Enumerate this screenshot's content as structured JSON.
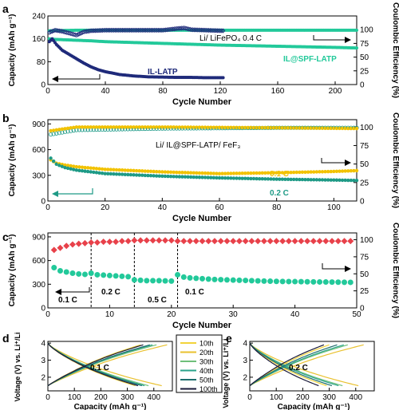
{
  "colors": {
    "navy": "#1f2a7a",
    "teal": "#22c99a",
    "yellow": "#f2c200",
    "tealDark": "#1e9a86",
    "red": "#e8414a"
  },
  "panels": {
    "a": {
      "letter": "a",
      "ylabel": "Capacity (mAh g⁻¹)",
      "y2label": "Coulombic Efficiency (%)",
      "xlabel": "Cycle Number",
      "xticks": [
        "0",
        "40",
        "80",
        "120",
        "160",
        "200"
      ],
      "yticks": [
        "0",
        "80",
        "160",
        "240"
      ],
      "y2ticks": [
        "0",
        "25",
        "50",
        "75",
        "100"
      ],
      "annotation": "Li/ LiFePO₄  0.4 C",
      "label_il": "IL-LATP",
      "label_spf": "IL@SPF-LATP"
    },
    "b": {
      "letter": "b",
      "ylabel": "Capacity (mAh g⁻¹)",
      "y2label": "Coulombic Efficiency (%)",
      "xlabel": "Cycle Number",
      "xticks": [
        "0",
        "20",
        "40",
        "60",
        "80",
        "100"
      ],
      "yticks": [
        "0",
        "300",
        "600",
        "900"
      ],
      "y2ticks": [
        "0",
        "25",
        "50",
        "75",
        "100"
      ],
      "annotation": "Li/ IL@SPF-LATP/ FeF₃",
      "rate1": "0.1 C",
      "rate2": "0.2 C"
    },
    "c": {
      "letter": "c",
      "ylabel": "Capacity (mAh g⁻¹)",
      "y2label": "Coulombic Efficiency (%)",
      "xlabel": "Cycle Number",
      "xticks": [
        "0",
        "10",
        "20",
        "30",
        "40",
        "50"
      ],
      "yticks": [
        "0",
        "300",
        "600",
        "900"
      ],
      "y2ticks": [
        "0",
        "25",
        "50",
        "75",
        "100"
      ],
      "rates": [
        "0.1 C",
        "0.2 C",
        "0.5 C",
        "0.1 C"
      ]
    },
    "d": {
      "letter": "d",
      "ylabel": "Voltage (V) vs. Li⁺/Li",
      "xlabel": "Capacity (mAh g⁻¹)",
      "xticks": [
        "0",
        "100",
        "200",
        "300",
        "400"
      ],
      "yticks": [
        "2",
        "3",
        "4"
      ],
      "rate": "0.1 C"
    },
    "e": {
      "letter": "e",
      "ylabel": "Voltage (V) vs. Li⁺/Li",
      "xlabel": "Capacity (mAh g⁻¹)",
      "xticks": [
        "0",
        "100",
        "200",
        "300",
        "400"
      ],
      "yticks": [
        "2",
        "3",
        "4"
      ],
      "rate": "0.2 C"
    },
    "legend": [
      "10th",
      "20th",
      "30th",
      "40th",
      "50th",
      "100th"
    ]
  },
  "chart_data": [
    {
      "type": "scatter",
      "panel": "a",
      "xlim": [
        0,
        215
      ],
      "ylim": [
        0,
        240
      ],
      "y2lim": [
        0,
        125
      ],
      "series": [
        {
          "name": "IL-LATP",
          "axis": "left",
          "x": [
            1,
            3,
            6,
            10,
            15,
            20,
            25,
            30,
            35,
            40,
            50,
            60,
            70,
            80,
            90,
            100,
            110,
            122
          ],
          "y": [
            150,
            160,
            140,
            120,
            105,
            90,
            75,
            62,
            52,
            45,
            35,
            30,
            27,
            26,
            25,
            25,
            24,
            24
          ]
        },
        {
          "name": "IL@SPF-LATP",
          "axis": "left",
          "x": [
            1,
            5,
            10,
            20,
            30,
            40,
            60,
            80,
            100,
            120,
            140,
            160,
            180,
            200,
            215
          ],
          "y": [
            160,
            158,
            157,
            155,
            153,
            150,
            147,
            144,
            141,
            138,
            136,
            134,
            132,
            130,
            128
          ]
        },
        {
          "name": "IL-LATP CE",
          "axis": "right",
          "x": [
            1,
            5,
            10,
            20,
            25,
            30,
            40,
            60,
            80,
            90,
            95,
            100,
            110,
            122
          ],
          "y": [
            95,
            99,
            97,
            90,
            96,
            98,
            99,
            99,
            99,
            102,
            103,
            100,
            99,
            98
          ]
        },
        {
          "name": "IL@SPF-LATP CE",
          "axis": "right",
          "x": [
            1,
            20,
            50,
            100,
            150,
            200,
            215
          ],
          "y": [
            98,
            99,
            99,
            99,
            99,
            99,
            99
          ]
        }
      ]
    },
    {
      "type": "scatter",
      "panel": "b",
      "xlim": [
        0,
        108
      ],
      "ylim": [
        0,
        950
      ],
      "y2lim": [
        0,
        110
      ],
      "series": [
        {
          "name": "0.1 C",
          "axis": "left",
          "x": [
            1,
            3,
            6,
            10,
            20,
            40,
            60,
            80,
            100,
            108
          ],
          "y": [
            480,
            440,
            420,
            400,
            370,
            340,
            320,
            330,
            345,
            355
          ]
        },
        {
          "name": "0.2 C",
          "axis": "left",
          "x": [
            1,
            3,
            6,
            10,
            20,
            40,
            60,
            80,
            100,
            108
          ],
          "y": [
            500,
            430,
            390,
            360,
            320,
            290,
            270,
            255,
            245,
            240
          ]
        },
        {
          "name": "0.1 C CE",
          "axis": "right",
          "x": [
            1,
            10,
            40,
            80,
            108
          ],
          "y": [
            95,
            100,
            100,
            99,
            98
          ]
        },
        {
          "name": "0.2 C CE",
          "axis": "right",
          "x": [
            1,
            10,
            40,
            80,
            108
          ],
          "y": [
            90,
            96,
            98,
            99,
            99
          ]
        }
      ]
    },
    {
      "type": "scatter",
      "panel": "c",
      "xlim": [
        0,
        50
      ],
      "ylim": [
        0,
        950
      ],
      "y2lim": [
        0,
        110
      ],
      "series": [
        {
          "name": "Capacity",
          "axis": "left",
          "x": [
            1,
            2,
            3,
            4,
            5,
            6,
            7,
            8,
            9,
            10,
            11,
            12,
            13,
            14,
            15,
            16,
            17,
            18,
            19,
            20,
            21,
            22,
            23,
            24,
            25,
            26,
            27,
            28,
            29,
            30,
            31,
            32,
            33,
            34,
            35,
            36,
            37,
            38,
            39,
            40,
            41,
            42,
            43,
            44,
            45,
            46,
            47,
            48,
            49
          ],
          "y": [
            510,
            470,
            455,
            440,
            430,
            425,
            440,
            420,
            415,
            410,
            405,
            400,
            395,
            355,
            350,
            345,
            345,
            345,
            342,
            340,
            420,
            390,
            380,
            375,
            370,
            365,
            360,
            358,
            355,
            352,
            350,
            348,
            345,
            342,
            340,
            338,
            336,
            335,
            334,
            333,
            332,
            331,
            330,
            329,
            328,
            327,
            326,
            325,
            324
          ]
        },
        {
          "name": "Coulombic Efficiency",
          "axis": "right",
          "x": [
            1,
            2,
            3,
            4,
            5,
            6,
            7,
            8,
            9,
            10,
            11,
            12,
            13,
            14,
            15,
            16,
            17,
            18,
            19,
            20,
            21,
            22,
            23,
            24,
            25,
            26,
            27,
            28,
            29,
            30,
            31,
            32,
            33,
            34,
            35,
            36,
            37,
            38,
            39,
            40,
            41,
            42,
            43,
            44,
            45,
            46,
            47,
            48,
            49
          ],
          "y": [
            85,
            88,
            91,
            93,
            94,
            95,
            96,
            96,
            97,
            97,
            97,
            98,
            98,
            99,
            99,
            99,
            99,
            99,
            99,
            99,
            98,
            98,
            98,
            98,
            98,
            98,
            98,
            98,
            98,
            98,
            98,
            98,
            98,
            98,
            98,
            98,
            98,
            98,
            98,
            98,
            98,
            98,
            98,
            98,
            98,
            98,
            98,
            98,
            98
          ]
        }
      ]
    },
    {
      "type": "line",
      "panel": "d",
      "xlim": [
        0,
        470
      ],
      "ylim": [
        1.2,
        4.1
      ],
      "series": [
        {
          "name": "10th",
          "charge_end": 350,
          "discharge_end": 330
        },
        {
          "name": "20th",
          "charge_end": 450,
          "discharge_end": 430
        },
        {
          "name": "30th",
          "charge_end": 410,
          "discharge_end": 380
        },
        {
          "name": "40th",
          "charge_end": 395,
          "discharge_end": 365
        },
        {
          "name": "50th",
          "charge_end": 385,
          "discharge_end": 355
        },
        {
          "name": "100th",
          "charge_end": 360,
          "discharge_end": 340
        }
      ]
    },
    {
      "type": "line",
      "panel": "e",
      "xlim": [
        0,
        470
      ],
      "ylim": [
        1.2,
        4.1
      ],
      "series": [
        {
          "name": "10th",
          "charge_end": 300,
          "discharge_end": 290
        },
        {
          "name": "20th",
          "charge_end": 430,
          "discharge_end": 410
        },
        {
          "name": "30th",
          "charge_end": 370,
          "discharge_end": 350
        },
        {
          "name": "40th",
          "charge_end": 355,
          "discharge_end": 335
        },
        {
          "name": "50th",
          "charge_end": 330,
          "discharge_end": 310
        },
        {
          "name": "100th",
          "charge_end": 280,
          "discharge_end": 260
        }
      ]
    }
  ]
}
